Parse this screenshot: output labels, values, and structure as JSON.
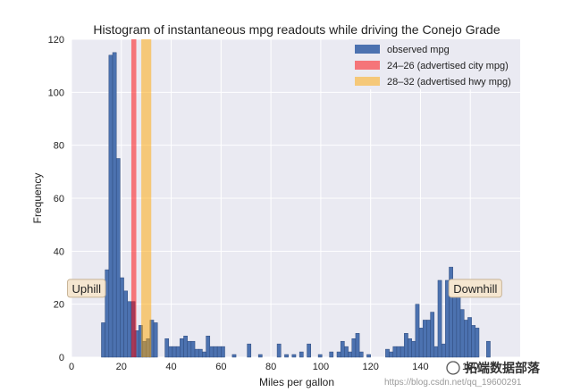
{
  "chart_data": {
    "type": "bar",
    "title": "Histogram of instantaneous mpg readouts while driving the Conejo Grade",
    "xlabel": "Miles per gallon",
    "ylabel": "Frequency",
    "xlim": [
      0,
      180
    ],
    "ylim": [
      0,
      120
    ],
    "xticks": [
      0,
      20,
      40,
      60,
      80,
      100,
      120,
      140,
      160
    ],
    "yticks": [
      0,
      20,
      40,
      60,
      80,
      100,
      120
    ],
    "grid": true,
    "legend_position": "top-right",
    "bin_width": 1.5,
    "series": [
      {
        "name": "observed mpg",
        "color": "#4c72b0",
        "bins": [
          {
            "x": 12.0,
            "y": 13
          },
          {
            "x": 13.5,
            "y": 33
          },
          {
            "x": 15.0,
            "y": 114
          },
          {
            "x": 16.5,
            "y": 115
          },
          {
            "x": 18.0,
            "y": 75
          },
          {
            "x": 19.5,
            "y": 30
          },
          {
            "x": 21.0,
            "y": 25
          },
          {
            "x": 22.5,
            "y": 21
          },
          {
            "x": 24.0,
            "y": 21
          },
          {
            "x": 25.5,
            "y": 10
          },
          {
            "x": 27.0,
            "y": 12
          },
          {
            "x": 28.5,
            "y": 6
          },
          {
            "x": 30.0,
            "y": 7
          },
          {
            "x": 31.5,
            "y": 14
          },
          {
            "x": 33.0,
            "y": 13
          },
          {
            "x": 37.5,
            "y": 7
          },
          {
            "x": 39.0,
            "y": 4
          },
          {
            "x": 40.5,
            "y": 4
          },
          {
            "x": 42.0,
            "y": 4
          },
          {
            "x": 43.5,
            "y": 7
          },
          {
            "x": 45.0,
            "y": 8
          },
          {
            "x": 46.5,
            "y": 6
          },
          {
            "x": 48.0,
            "y": 6
          },
          {
            "x": 49.5,
            "y": 3
          },
          {
            "x": 51.0,
            "y": 3
          },
          {
            "x": 52.5,
            "y": 2
          },
          {
            "x": 54.0,
            "y": 8
          },
          {
            "x": 55.5,
            "y": 4
          },
          {
            "x": 57.0,
            "y": 4
          },
          {
            "x": 58.5,
            "y": 4
          },
          {
            "x": 60.0,
            "y": 4
          },
          {
            "x": 64.5,
            "y": 1
          },
          {
            "x": 70.5,
            "y": 5
          },
          {
            "x": 75.0,
            "y": 1
          },
          {
            "x": 82.5,
            "y": 5
          },
          {
            "x": 85.5,
            "y": 1
          },
          {
            "x": 88.5,
            "y": 1
          },
          {
            "x": 91.5,
            "y": 2
          },
          {
            "x": 94.5,
            "y": 5
          },
          {
            "x": 99.0,
            "y": 1
          },
          {
            "x": 103.5,
            "y": 2
          },
          {
            "x": 106.5,
            "y": 2
          },
          {
            "x": 108.0,
            "y": 6
          },
          {
            "x": 109.5,
            "y": 4
          },
          {
            "x": 111.0,
            "y": 2
          },
          {
            "x": 112.5,
            "y": 7
          },
          {
            "x": 114.0,
            "y": 9
          },
          {
            "x": 115.5,
            "y": 2
          },
          {
            "x": 118.5,
            "y": 1
          },
          {
            "x": 126.0,
            "y": 3
          },
          {
            "x": 127.5,
            "y": 2
          },
          {
            "x": 129.0,
            "y": 4
          },
          {
            "x": 130.5,
            "y": 4
          },
          {
            "x": 132.0,
            "y": 4
          },
          {
            "x": 133.5,
            "y": 9
          },
          {
            "x": 135.0,
            "y": 7
          },
          {
            "x": 136.5,
            "y": 6
          },
          {
            "x": 138.0,
            "y": 20
          },
          {
            "x": 139.5,
            "y": 11
          },
          {
            "x": 141.0,
            "y": 14
          },
          {
            "x": 142.5,
            "y": 14
          },
          {
            "x": 144.0,
            "y": 17
          },
          {
            "x": 145.5,
            "y": 4
          },
          {
            "x": 147.0,
            "y": 29
          },
          {
            "x": 148.5,
            "y": 5
          },
          {
            "x": 150.0,
            "y": 29
          },
          {
            "x": 151.5,
            "y": 34
          },
          {
            "x": 153.0,
            "y": 27
          },
          {
            "x": 154.5,
            "y": 23
          },
          {
            "x": 156.0,
            "y": 18
          },
          {
            "x": 157.5,
            "y": 14
          },
          {
            "x": 159.0,
            "y": 15
          },
          {
            "x": 160.5,
            "y": 12
          },
          {
            "x": 162.0,
            "y": 11
          },
          {
            "x": 166.5,
            "y": 6
          }
        ]
      }
    ],
    "spans": [
      {
        "name": "24–26 (advertised city mpg)",
        "x0": 24,
        "x1": 26,
        "color": "#ff0000",
        "opacity": 0.5
      },
      {
        "name": "28–32 (advertised hwy mpg)",
        "x0": 28,
        "x1": 32,
        "color": "#ffa500",
        "opacity": 0.5
      }
    ],
    "annotations": [
      {
        "text": "Uphill",
        "x": 6,
        "y": 26
      },
      {
        "text": "Downhill",
        "x": 162,
        "y": 26
      }
    ],
    "colors": {
      "plot_background": "#eaeaf2",
      "grid": "#ffffff"
    }
  },
  "watermark": {
    "url_text": "https://blog.csdn.net/qq_19600291",
    "brand_text": "拓端数据部落"
  }
}
